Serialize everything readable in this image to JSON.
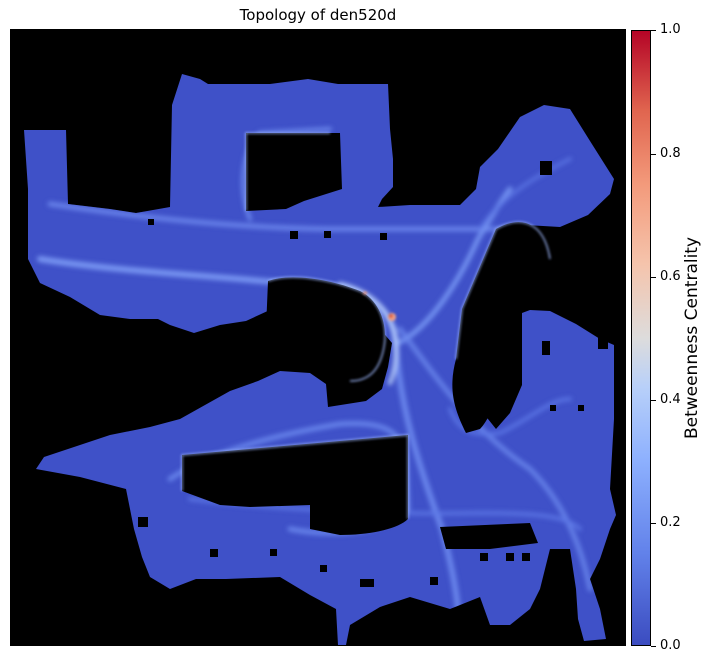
{
  "chart_data": {
    "type": "heatmap",
    "title": "Topology of den520d",
    "xlabel": "",
    "ylabel": "",
    "colorbar": {
      "label": "Betweenness Centrality",
      "colormap": "coolwarm",
      "range": [
        0.0,
        1.0
      ],
      "ticks": [
        "0.0",
        "0.2",
        "0.4",
        "0.6",
        "0.8",
        "1.0"
      ]
    },
    "background_color": "#000000",
    "floor_color": "#3f51c8",
    "peak": {
      "value": 1.0,
      "color": "#d8593f"
    },
    "values_summary": "Most free cells about 0.0-0.1; bright ridges along the central routes about 0.2-0.4; one hotspot near the centre near 1.0"
  }
}
